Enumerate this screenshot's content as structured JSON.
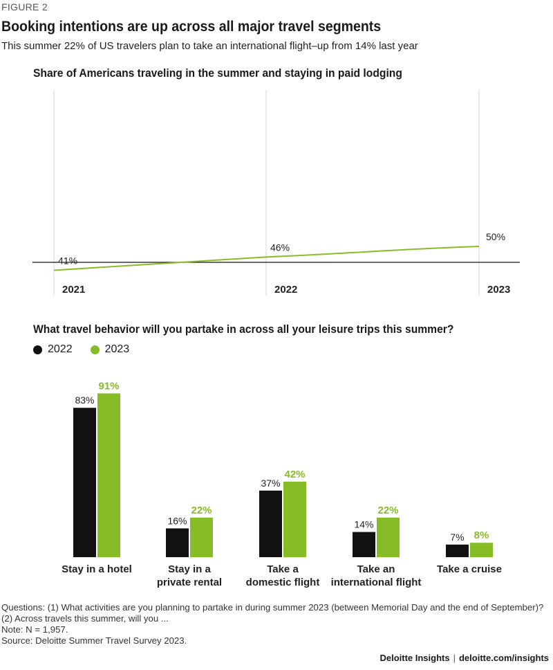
{
  "figure_label": "FIGURE 2",
  "title": "Booking intentions are up across all major travel segments",
  "subtitle": "This summer 22% of US travelers plan to take an international flight–up from 14% last year",
  "colors": {
    "series_2022": "#111111",
    "series_2023": "#86bc25",
    "line": "#86bc25",
    "grid": "#d6d6d6"
  },
  "chart_data": [
    {
      "type": "line",
      "title": "Share of Americans traveling in the summer and staying in paid lodging",
      "x": [
        "2021",
        "2022",
        "2023"
      ],
      "values": [
        41,
        46,
        50
      ],
      "labels": [
        "41%",
        "46%",
        "50%"
      ],
      "grid": "vertical"
    },
    {
      "type": "bar",
      "title": "What travel behavior will you partake in across all your leisure trips this summer?",
      "categories": [
        [
          "Stay in a hotel"
        ],
        [
          "Stay in a",
          "private rental"
        ],
        [
          "Take a",
          "domestic flight"
        ],
        [
          "Take an",
          "international flight"
        ],
        [
          "Take a cruise"
        ]
      ],
      "series": [
        {
          "name": "2022",
          "values": [
            83,
            16,
            37,
            14,
            7
          ],
          "labels": [
            "83%",
            "16%",
            "37%",
            "14%",
            "7%"
          ]
        },
        {
          "name": "2023",
          "values": [
            91,
            22,
            42,
            22,
            8
          ],
          "labels": [
            "91%",
            "22%",
            "42%",
            "22%",
            "8%"
          ]
        }
      ],
      "legend": "top-left"
    }
  ],
  "notes": {
    "questions": "Questions: (1) What activities are you planning to partake in during summer 2023 (between Memorial Day and the end of September)? (2) Across travels this summer, will you ...",
    "note": "Note: N = 1,957.",
    "source": "Source: Deloitte Summer Travel Survey 2023."
  },
  "footer": {
    "brand": "Deloitte Insights",
    "url": "deloitte.com/insights"
  }
}
